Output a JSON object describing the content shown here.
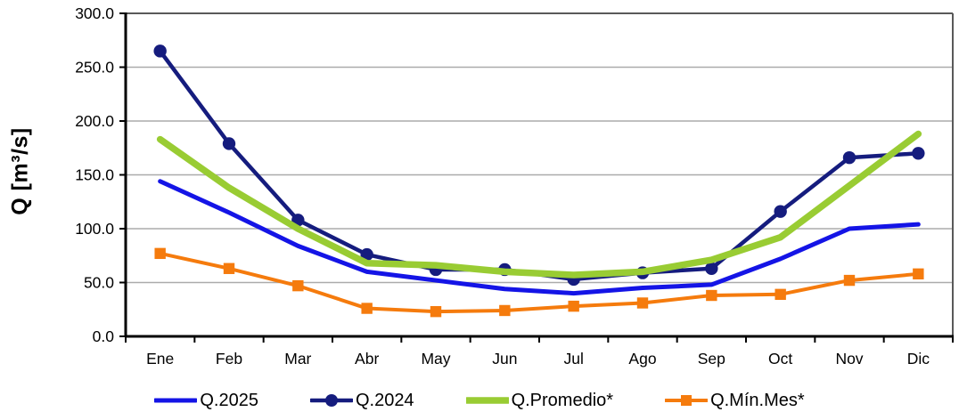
{
  "chart_data": {
    "type": "line",
    "title": "",
    "ylabel": "Q [m³/s]",
    "xlabel": "",
    "ylim": [
      0,
      300
    ],
    "ytick_step": 50,
    "ytick_labels": [
      "0.0",
      "50.0",
      "100.0",
      "150.0",
      "200.0",
      "250.0",
      "300.0"
    ],
    "grid": "horizontal",
    "legend_position": "bottom",
    "categories": [
      "Ene",
      "Feb",
      "Mar",
      "Abr",
      "May",
      "Jun",
      "Jul",
      "Ago",
      "Sep",
      "Oct",
      "Nov",
      "Dic"
    ],
    "series": [
      {
        "name": "Q.2025",
        "color": "#1414E6",
        "marker": "none",
        "line_width": 5,
        "values": [
          144,
          115,
          84,
          60,
          52,
          44,
          40,
          45,
          48,
          72,
          100,
          104
        ]
      },
      {
        "name": "Q.2024",
        "color": "#151C7E",
        "marker": "circle",
        "line_width": 4.5,
        "values": [
          265,
          179,
          108,
          76,
          62,
          62,
          53,
          59,
          63,
          116,
          166,
          170
        ]
      },
      {
        "name": "Q.Promedio*",
        "color": "#99CC33",
        "marker": "none",
        "line_width": 7.5,
        "values": [
          183,
          138,
          100,
          68,
          66,
          60,
          57,
          60,
          71,
          92,
          140,
          188
        ]
      },
      {
        "name": "Q.Mín.Mes*",
        "color": "#F57B0D",
        "marker": "square",
        "line_width": 4,
        "values": [
          77,
          63,
          47,
          26,
          23,
          24,
          28,
          31,
          38,
          39,
          52,
          58
        ]
      }
    ],
    "colors": {
      "gridline": "#ABABAB",
      "frame": "#595959",
      "axis": "#000000",
      "text": "#000000"
    }
  }
}
